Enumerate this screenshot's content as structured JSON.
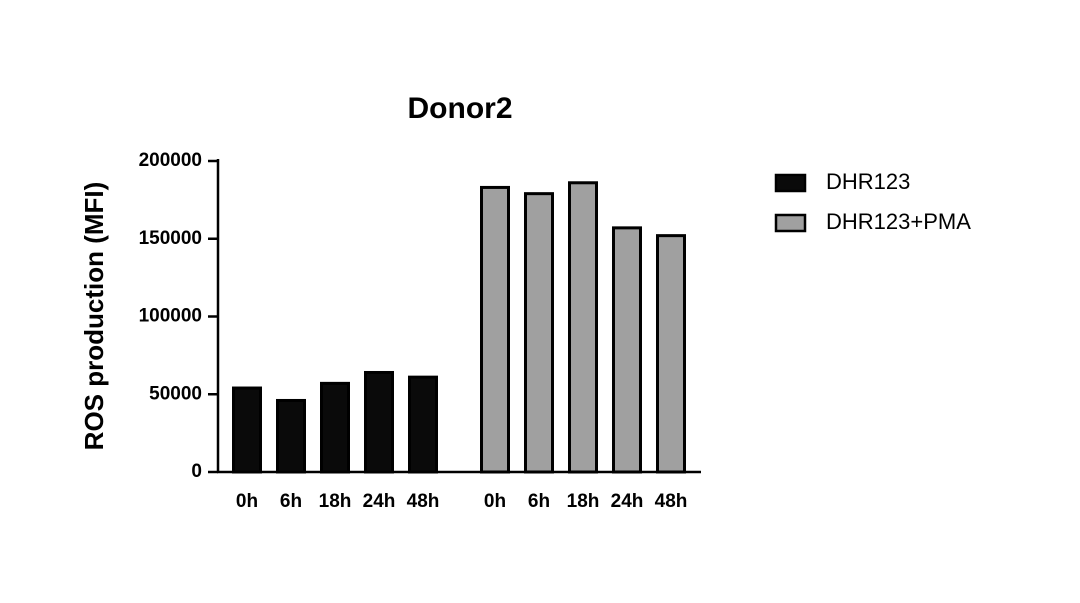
{
  "chart_data": {
    "type": "bar",
    "title": "Donor2",
    "y_label": "ROS production (MFI)",
    "categories": [
      "0h",
      "6h",
      "18h",
      "24h",
      "48h"
    ],
    "series": [
      {
        "name": "DHR123",
        "color": "#0a0a0a",
        "values": [
          54000,
          46000,
          57000,
          64000,
          61000
        ]
      },
      {
        "name": "DHR123+PMA",
        "color": "#a0a0a0",
        "values": [
          183000,
          179000,
          186000,
          157000,
          152000
        ]
      }
    ],
    "ylim": [
      0,
      200000
    ],
    "yticks": [
      0,
      50000,
      100000,
      150000,
      200000
    ],
    "grid": false
  }
}
